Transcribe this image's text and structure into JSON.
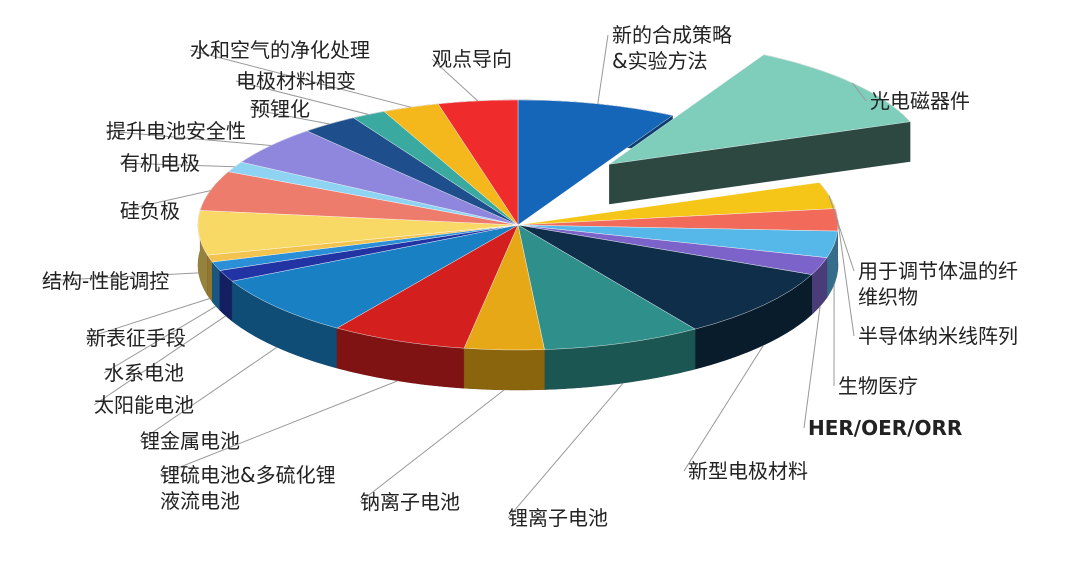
{
  "chart_data": {
    "type": "pie",
    "title": "",
    "slices": [
      {
        "label": "新的合成策略\n&实验方法",
        "value": 7,
        "color": "#1565b8"
      },
      {
        "label": "光电磁器件",
        "value": 10,
        "color": "#7fcdbb",
        "exploded": true
      },
      {
        "label": "用于调节体温的纤\n维织物",
        "value": 3,
        "color": "#f5c518"
      },
      {
        "label": "半导体纳米线阵列",
        "value": 2.5,
        "color": "#f26a5a"
      },
      {
        "label": "生物医疗",
        "value": 3,
        "color": "#56b8e8"
      },
      {
        "label": "HER/OER/ORR",
        "value": 2,
        "color": "#7b63c9"
      },
      {
        "label": "新型电极材料",
        "value": 8,
        "color": "#0f2e4a"
      },
      {
        "label": "锂离子电池",
        "value": 7,
        "color": "#2f8f8a"
      },
      {
        "label": "钠离子电池",
        "value": 3.5,
        "color": "#e6a817"
      },
      {
        "label": "锂硫电池&多硫化锂\n液流电池",
        "value": 6,
        "color": "#d41f1f"
      },
      {
        "label": "锂金属电池",
        "value": 7,
        "color": "#1a80c4"
      },
      {
        "label": "太阳能电池",
        "value": 1.3,
        "color": "#2233a3"
      },
      {
        "label": "水系电池",
        "value": 1,
        "color": "#2a8fd6"
      },
      {
        "label": "新表征手段",
        "value": 0.8,
        "color": "#f2c44f"
      },
      {
        "label": "结构-性能调控",
        "value": 5,
        "color": "#f9d966"
      },
      {
        "label": "硅负极",
        "value": 4.5,
        "color": "#ee7c6c"
      },
      {
        "label": "有机电极",
        "value": 1.2,
        "color": "#8fd3f3"
      },
      {
        "label": "提升电池安全性",
        "value": 4.5,
        "color": "#8f86dd"
      },
      {
        "label": "预锂化",
        "value": 2.5,
        "color": "#1e4f8c"
      },
      {
        "label": "电极材料相变",
        "value": 1.5,
        "color": "#3aa9a0"
      },
      {
        "label": "水和空气的净化处理",
        "value": 2.5,
        "color": "#f4b81c"
      },
      {
        "label": "观点导向",
        "value": 3.5,
        "color": "#f02b2b"
      }
    ]
  }
}
